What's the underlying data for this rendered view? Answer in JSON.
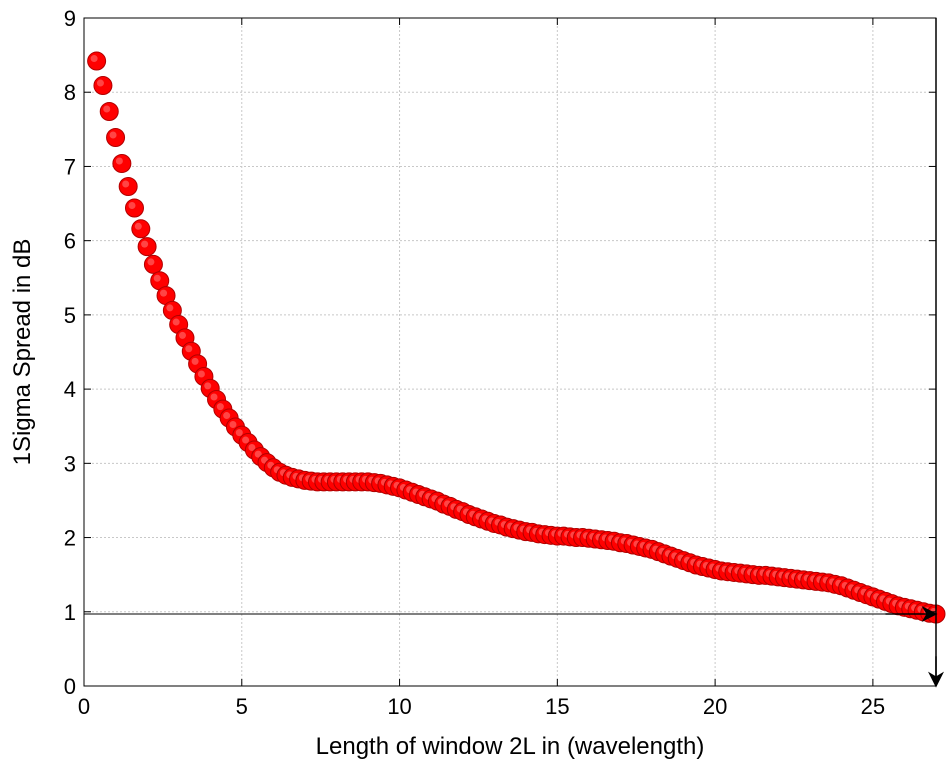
{
  "chart_data": {
    "type": "scatter",
    "title": "",
    "xlabel": "Length of window 2L in (wavelength)",
    "ylabel": "1Sigma Spread in dB",
    "xlim": [
      0,
      27
    ],
    "ylim": [
      0,
      9
    ],
    "x_ticks": [
      "0",
      "5",
      "10",
      "15",
      "20",
      "25"
    ],
    "y_ticks": [
      "0",
      "1",
      "2",
      "3",
      "4",
      "5",
      "6",
      "7",
      "8",
      "9"
    ],
    "grid": true,
    "marker_color": "#ff0000",
    "series": [
      {
        "x": [
          0.4,
          0.6,
          0.8,
          1.0,
          1.2,
          1.4,
          1.6,
          1.8,
          2.0,
          2.2,
          2.4,
          2.6,
          2.8,
          3.0,
          3.2,
          3.4,
          3.6,
          3.8,
          4.0,
          4.2,
          4.4,
          4.6,
          4.8,
          5.0,
          5.2,
          5.4,
          5.6,
          5.8,
          6.0,
          6.2,
          6.4,
          6.6,
          6.8,
          7.0,
          7.2,
          7.4,
          7.6,
          7.8,
          8.0,
          8.2,
          8.4,
          8.6,
          8.8,
          9.0,
          9.2,
          9.4,
          9.6,
          9.8,
          10.0,
          10.2,
          10.4,
          10.6,
          10.8,
          11.0,
          11.2,
          11.4,
          11.6,
          11.8,
          12.0,
          12.2,
          12.4,
          12.6,
          12.8,
          13.0,
          13.2,
          13.4,
          13.6,
          13.8,
          14.0,
          14.2,
          14.4,
          14.6,
          14.8,
          15.0,
          15.2,
          15.4,
          15.6,
          15.8,
          16.0,
          16.2,
          16.4,
          16.6,
          16.8,
          17.0,
          17.2,
          17.4,
          17.6,
          17.8,
          18.0,
          18.2,
          18.4,
          18.6,
          18.8,
          19.0,
          19.2,
          19.4,
          19.6,
          19.8,
          20.0,
          20.2,
          20.4,
          20.6,
          20.8,
          21.0,
          21.2,
          21.4,
          21.6,
          21.8,
          22.0,
          22.2,
          22.4,
          22.6,
          22.8,
          23.0,
          23.2,
          23.4,
          23.6,
          23.8,
          24.0,
          24.2,
          24.4,
          24.6,
          24.8,
          25.0,
          25.2,
          25.4,
          25.6,
          25.8,
          26.0,
          26.2,
          26.4,
          26.6,
          26.8,
          27.0
        ],
        "y": [
          8.42,
          8.09,
          7.74,
          7.39,
          7.04,
          6.73,
          6.44,
          6.16,
          5.92,
          5.68,
          5.46,
          5.26,
          5.06,
          4.87,
          4.69,
          4.51,
          4.34,
          4.17,
          4.01,
          3.86,
          3.73,
          3.61,
          3.49,
          3.38,
          3.28,
          3.18,
          3.09,
          3.01,
          2.94,
          2.88,
          2.84,
          2.81,
          2.79,
          2.77,
          2.76,
          2.75,
          2.75,
          2.75,
          2.75,
          2.75,
          2.75,
          2.75,
          2.75,
          2.75,
          2.74,
          2.73,
          2.71,
          2.69,
          2.67,
          2.64,
          2.61,
          2.58,
          2.55,
          2.52,
          2.49,
          2.45,
          2.42,
          2.38,
          2.35,
          2.31,
          2.28,
          2.25,
          2.22,
          2.19,
          2.17,
          2.14,
          2.12,
          2.1,
          2.08,
          2.07,
          2.05,
          2.04,
          2.03,
          2.02,
          2.02,
          2.01,
          2.0,
          2.0,
          1.99,
          1.98,
          1.97,
          1.96,
          1.95,
          1.93,
          1.92,
          1.9,
          1.88,
          1.86,
          1.84,
          1.81,
          1.78,
          1.75,
          1.72,
          1.69,
          1.66,
          1.63,
          1.61,
          1.59,
          1.57,
          1.55,
          1.54,
          1.53,
          1.52,
          1.51,
          1.5,
          1.49,
          1.49,
          1.48,
          1.47,
          1.46,
          1.45,
          1.44,
          1.43,
          1.42,
          1.41,
          1.4,
          1.39,
          1.37,
          1.35,
          1.32,
          1.29,
          1.26,
          1.23,
          1.2,
          1.17,
          1.14,
          1.11,
          1.08,
          1.06,
          1.04,
          1.02,
          1.0,
          0.98,
          0.97
        ]
      }
    ],
    "annotations": [
      {
        "type": "hline",
        "y": 0.97
      },
      {
        "type": "vline",
        "x": 27
      },
      {
        "type": "arrow",
        "from": [
          25.4,
          0.97
        ],
        "to": [
          27,
          0.97
        ]
      },
      {
        "type": "arrow",
        "from": [
          27,
          0.4
        ],
        "to": [
          27,
          0
        ]
      }
    ]
  }
}
